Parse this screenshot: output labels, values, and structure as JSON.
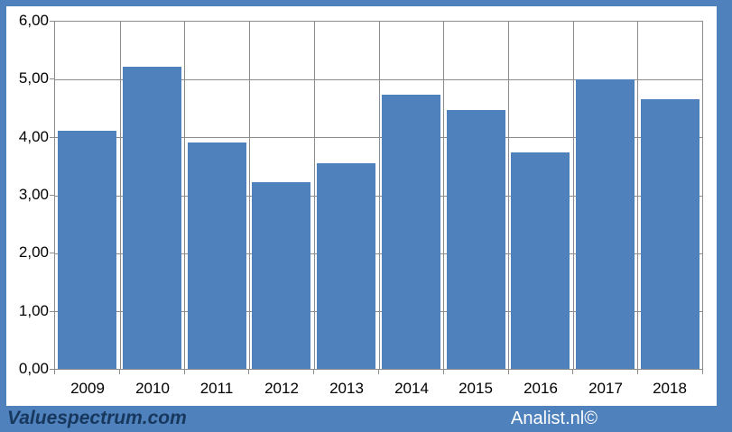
{
  "page": {
    "frame_color": "#4f81bd",
    "panel_color": "#ffffff"
  },
  "footer": {
    "brand": "Valuespectrum.com",
    "credit": "Analist.nl©",
    "brand_color": "#17375d",
    "credit_color": "#ffffff"
  },
  "chart_data": {
    "type": "bar",
    "categories": [
      "2009",
      "2010",
      "2011",
      "2012",
      "2013",
      "2014",
      "2015",
      "2016",
      "2017",
      "2018"
    ],
    "values": [
      4.11,
      5.22,
      3.91,
      3.22,
      3.55,
      4.73,
      4.47,
      3.74,
      5.0,
      4.66
    ],
    "title": "",
    "xlabel": "",
    "ylabel": "",
    "ylim": [
      0,
      6
    ],
    "ytick_step": 1,
    "ytick_labels": [
      "0,00",
      "1,00",
      "2,00",
      "3,00",
      "4,00",
      "5,00",
      "6,00"
    ],
    "grid": true,
    "legend": false,
    "bar_color": "#4f81bd",
    "gridline_color": "#8c8c8c",
    "tick_label_color": "#000000"
  }
}
